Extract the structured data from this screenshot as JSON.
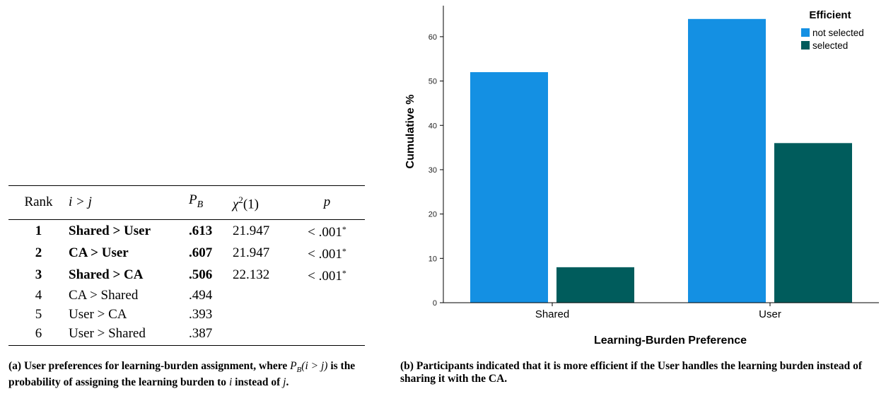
{
  "table": {
    "headers": {
      "rank": "Rank",
      "pair": "i > j",
      "pb_main": "P",
      "pb_sub": "B",
      "chi_main": "χ",
      "chi_sup": "2",
      "chi_arg": "(1)",
      "p": "p"
    },
    "rows": [
      {
        "rank": "1",
        "pair": "Shared > User",
        "pb": ".613",
        "chi": "21.947",
        "p": "< .001",
        "star": "*",
        "bold": true
      },
      {
        "rank": "2",
        "pair": "CA > User",
        "pb": ".607",
        "chi": "21.947",
        "p": "< .001",
        "star": "*",
        "bold": true
      },
      {
        "rank": "3",
        "pair": "Shared > CA",
        "pb": ".506",
        "chi": "22.132",
        "p": "< .001",
        "star": "*",
        "bold": true
      },
      {
        "rank": "4",
        "pair": "CA > Shared",
        "pb": ".494",
        "chi": "",
        "p": "",
        "star": "",
        "bold": false
      },
      {
        "rank": "5",
        "pair": "User > CA",
        "pb": ".393",
        "chi": "",
        "p": "",
        "star": "",
        "bold": false
      },
      {
        "rank": "6",
        "pair": "User > Shared",
        "pb": ".387",
        "chi": "",
        "p": "",
        "star": "",
        "bold": false
      }
    ]
  },
  "captions": {
    "a": {
      "label": "(a)",
      "part1": "User preferences for learning-burden assignment, where",
      "math1_main": "P",
      "math1_sub": "B",
      "math1_arg": "(i > j)",
      "part2": "is the probability of assigning the learning burden to",
      "math2": "i",
      "part3": "instead of",
      "math3": "j",
      "end": "."
    },
    "b": {
      "label": "(b)",
      "text": "Participants indicated that it is more efficient if the User handles the learning burden instead of sharing it with the CA."
    }
  },
  "chart_data": {
    "type": "bar",
    "categories": [
      "Shared",
      "User"
    ],
    "series": [
      {
        "name": "not selected",
        "values": [
          52,
          64
        ],
        "color": "#1490e3"
      },
      {
        "name": "selected",
        "values": [
          8,
          36
        ],
        "color": "#005c5c"
      }
    ],
    "xlabel": "Learning-Burden Preference",
    "ylabel": "Cumulative %",
    "ylim": [
      0,
      67
    ],
    "yticks": [
      0,
      10,
      20,
      30,
      40,
      50,
      60
    ],
    "legend_title": "Efficient",
    "legend_position": "top-right",
    "grid": false
  }
}
